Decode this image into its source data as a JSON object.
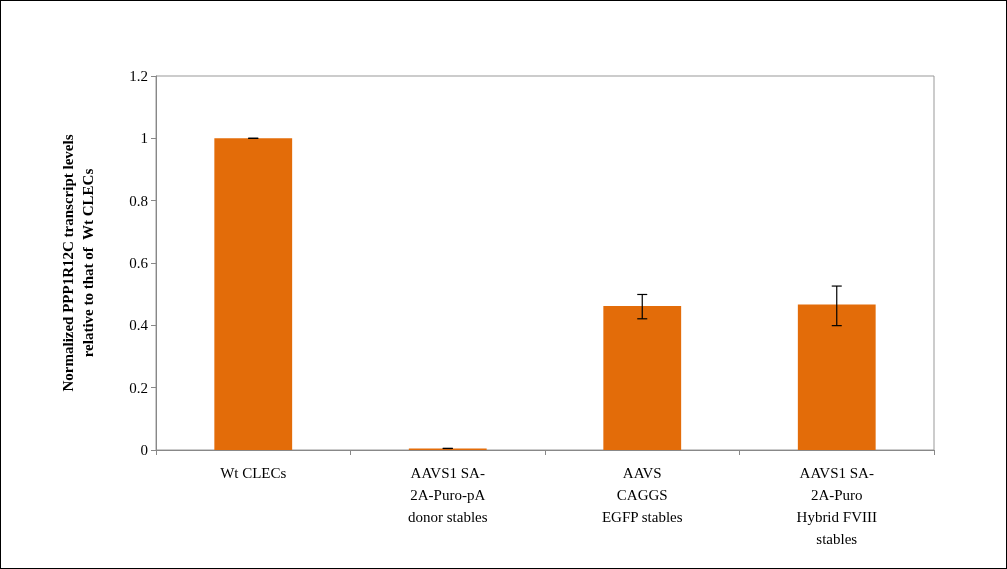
{
  "chart_data": {
    "type": "bar",
    "ylabel": "Normalized PPP1R12C transcript levels\nrelative to that of  Wt CLECs",
    "categories": [
      "Wt CLECs",
      "AAVS1 SA-\n2A-Puro-pA\ndonor stables",
      "AAVS\nCAGGS\nEGFP stables",
      "AAVS1 SA-\n2A-Puro\nHybrid FVIII\nstables"
    ],
    "values": [
      1.0,
      0.005,
      0.462,
      0.467
    ],
    "errors": [
      0,
      0,
      [
        0.421,
        0.499
      ],
      [
        0.399,
        0.526
      ]
    ],
    "color": "#e36c09",
    "ylim": [
      0,
      1.2
    ],
    "yticks": [
      0,
      0.2,
      0.4,
      0.6,
      0.8,
      1,
      1.2
    ],
    "grid": false
  }
}
